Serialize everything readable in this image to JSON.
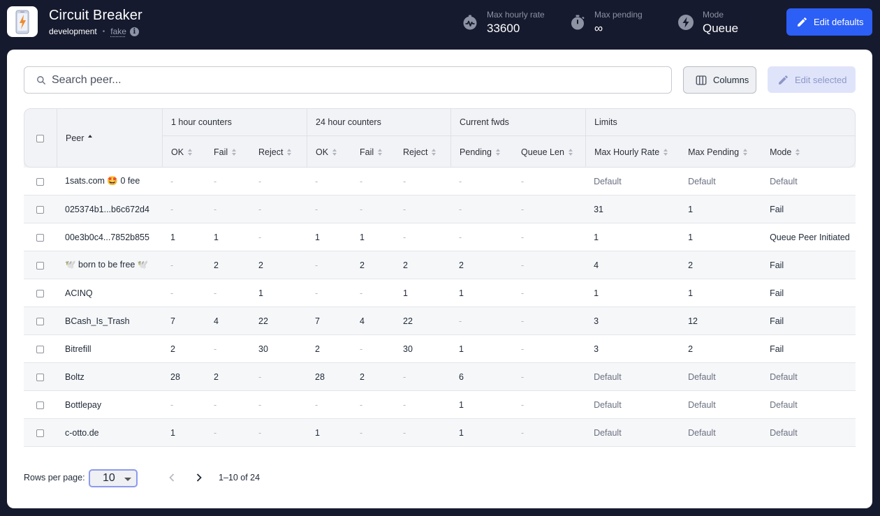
{
  "app": {
    "title": "Circuit Breaker",
    "env": "development",
    "network": "fake"
  },
  "stats": {
    "max_hourly_rate_label": "Max hourly rate",
    "max_hourly_rate_value": "33600",
    "max_pending_label": "Max pending",
    "max_pending_value": "∞",
    "mode_label": "Mode",
    "mode_value": "Queue"
  },
  "toolbar": {
    "edit_defaults_label": "Edit defaults",
    "search_placeholder": "Search peer...",
    "columns_label": "Columns",
    "edit_selected_label": "Edit selected"
  },
  "table": {
    "groups": [
      "1 hour counters",
      "24 hour counters",
      "Current fwds",
      "Limits"
    ],
    "peer_header": "Peer",
    "columns": [
      "OK",
      "Fail",
      "Reject",
      "OK",
      "Fail",
      "Reject",
      "Pending",
      "Queue Len",
      "Max Hourly Rate",
      "Max Pending",
      "Mode"
    ],
    "rows": [
      [
        "1sats.com 🤩 0 fee",
        "-",
        "-",
        "-",
        "-",
        "-",
        "-",
        "-",
        "-",
        "Default",
        "Default",
        "Default"
      ],
      [
        "025374b1...b6c672d4",
        "-",
        "-",
        "-",
        "-",
        "-",
        "-",
        "-",
        "-",
        "31",
        "1",
        "Fail"
      ],
      [
        "00e3b0c4...7852b855",
        "1",
        "1",
        "-",
        "1",
        "1",
        "-",
        "-",
        "-",
        "1",
        "1",
        "Queue Peer Initiated"
      ],
      [
        "🕊️ born to be free 🕊️",
        "-",
        "2",
        "2",
        "-",
        "2",
        "2",
        "2",
        "-",
        "4",
        "2",
        "Fail"
      ],
      [
        "ACINQ",
        "-",
        "-",
        "1",
        "-",
        "-",
        "1",
        "1",
        "-",
        "1",
        "1",
        "Fail"
      ],
      [
        "BCash_Is_Trash",
        "7",
        "4",
        "22",
        "7",
        "4",
        "22",
        "-",
        "-",
        "3",
        "12",
        "Fail"
      ],
      [
        "Bitrefill",
        "2",
        "-",
        "30",
        "2",
        "-",
        "30",
        "1",
        "-",
        "3",
        "2",
        "Fail"
      ],
      [
        "Boltz",
        "28",
        "2",
        "-",
        "28",
        "2",
        "-",
        "6",
        "-",
        "Default",
        "Default",
        "Default"
      ],
      [
        "Bottlepay",
        "-",
        "-",
        "-",
        "-",
        "-",
        "-",
        "1",
        "-",
        "Default",
        "Default",
        "Default"
      ],
      [
        "c-otto.de",
        "1",
        "-",
        "-",
        "1",
        "-",
        "-",
        "1",
        "-",
        "Default",
        "Default",
        "Default"
      ]
    ]
  },
  "pagination": {
    "rows_per_page_label": "Rows per page:",
    "rows_per_page_value": "10",
    "range_label": "1–10 of 24"
  },
  "colors": {
    "header_bg": "#161a2e",
    "accent": "#2c5ff6",
    "card_bg": "#ffffff"
  }
}
